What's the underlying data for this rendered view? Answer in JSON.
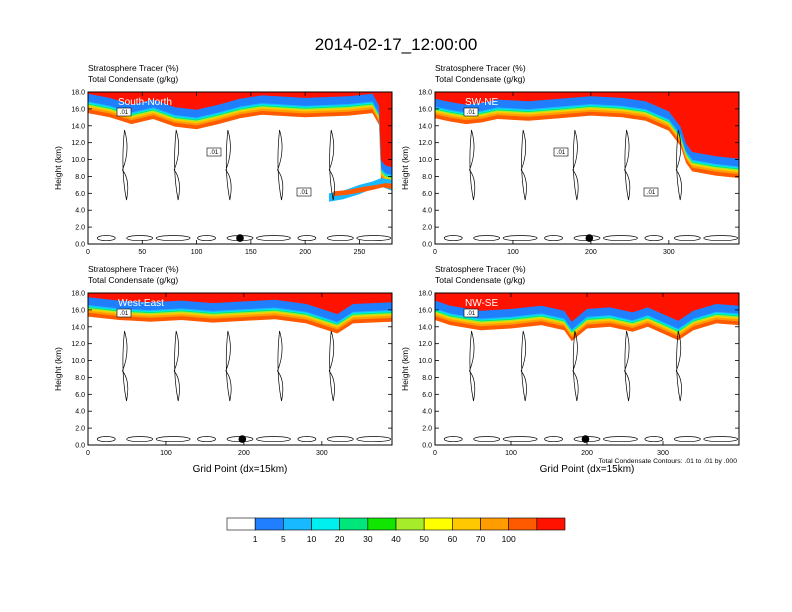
{
  "figure": {
    "title": "2014-02-17_12:00:00",
    "contour_note": "Total Condensate Contours: .01 to .01 by .000"
  },
  "colorbar": {
    "labels": [
      "1",
      "5",
      "10",
      "20",
      "30",
      "40",
      "50",
      "60",
      "70",
      "100"
    ],
    "colors": [
      "#ffffff",
      "#1f7fff",
      "#19b9ff",
      "#00f0f0",
      "#00e67a",
      "#11e600",
      "#a6ec2b",
      "#ffff00",
      "#ffc800",
      "#ff9c00",
      "#ff5a00",
      "#ff1200"
    ]
  },
  "chart_data": [
    {
      "type": "heatmap",
      "name": "South-North",
      "header_line1": "Stratosphere Tracer   (%)",
      "header_line2": "Total Condensate   (g/kg)",
      "ylabel": "Height (km)",
      "xlabel": "",
      "xlim": [
        0,
        280
      ],
      "ylim": [
        0,
        18
      ],
      "xticks": [
        "0",
        "50",
        "100",
        "150",
        "200",
        "250"
      ],
      "yticks": [
        "0.0",
        "2.0",
        "4.0",
        "6.0",
        "8.0",
        "10.0",
        "12.0",
        "14.0",
        "16.0",
        "18.0"
      ],
      "tropopause_km": [
        [
          0,
          15.9
        ],
        [
          20,
          15.4
        ],
        [
          40,
          14.6
        ],
        [
          60,
          15.2
        ],
        [
          80,
          14.3
        ],
        [
          100,
          14.0
        ],
        [
          120,
          14.6
        ],
        [
          140,
          15.3
        ],
        [
          160,
          15.7
        ],
        [
          200,
          15.4
        ],
        [
          240,
          15.6
        ],
        [
          262,
          15.9
        ],
        [
          268,
          14.5
        ],
        [
          270,
          8.0
        ],
        [
          274,
          7.4
        ],
        [
          280,
          7.2
        ]
      ],
      "intrusion_polygon_km": [
        [
          222,
          6.0
        ],
        [
          235,
          6.3
        ],
        [
          250,
          7.0
        ],
        [
          262,
          7.4
        ],
        [
          270,
          7.8
        ],
        [
          280,
          7.6
        ],
        [
          280,
          6.3
        ],
        [
          268,
          6.9
        ],
        [
          250,
          5.9
        ],
        [
          235,
          5.3
        ],
        [
          222,
          5.0
        ]
      ],
      "contour_labels": [
        ".01",
        ".01",
        ".01"
      ],
      "marker_x": 140
    },
    {
      "type": "heatmap",
      "name": "SW-NE",
      "header_line1": "Stratosphere Tracer   (%)",
      "header_line2": "Total Condensate   (g/kg)",
      "ylabel": "Height (km)",
      "xlabel": "",
      "xlim": [
        0,
        390
      ],
      "ylim": [
        0,
        18
      ],
      "xticks": [
        "0",
        "100",
        "200",
        "300"
      ],
      "yticks": [
        "0.0",
        "2.0",
        "4.0",
        "6.0",
        "8.0",
        "10.0",
        "12.0",
        "14.0",
        "16.0",
        "18.0"
      ],
      "tropopause_km": [
        [
          0,
          15.3
        ],
        [
          20,
          14.9
        ],
        [
          40,
          14.6
        ],
        [
          60,
          14.8
        ],
        [
          80,
          15.2
        ],
        [
          120,
          15.0
        ],
        [
          160,
          15.3
        ],
        [
          200,
          15.6
        ],
        [
          240,
          15.4
        ],
        [
          270,
          15.0
        ],
        [
          300,
          13.8
        ],
        [
          315,
          12.0
        ],
        [
          322,
          10.0
        ],
        [
          330,
          9.0
        ],
        [
          360,
          8.5
        ],
        [
          390,
          8.2
        ]
      ],
      "intrusion_polygon_km": [],
      "contour_labels": [
        ".01",
        ".01",
        ".01"
      ],
      "marker_x": 198
    },
    {
      "type": "heatmap",
      "name": "West-East",
      "header_line1": "Stratosphere Tracer   (%)",
      "header_line2": "Total Condensate   (g/kg)",
      "ylabel": "Height (km)",
      "xlabel": "Grid Point (dx=15km)",
      "xlim": [
        0,
        390
      ],
      "ylim": [
        0,
        18
      ],
      "xticks": [
        "0",
        "100",
        "200",
        "300"
      ],
      "yticks": [
        "0.0",
        "2.0",
        "4.0",
        "6.0",
        "8.0",
        "10.0",
        "12.0",
        "14.0",
        "16.0",
        "18.0"
      ],
      "tropopause_km": [
        [
          0,
          15.6
        ],
        [
          40,
          15.2
        ],
        [
          80,
          15.0
        ],
        [
          120,
          15.2
        ],
        [
          160,
          14.9
        ],
        [
          200,
          15.1
        ],
        [
          240,
          15.3
        ],
        [
          280,
          14.8
        ],
        [
          300,
          14.2
        ],
        [
          320,
          13.6
        ],
        [
          340,
          14.8
        ],
        [
          390,
          15.0
        ]
      ],
      "intrusion_polygon_km": [],
      "contour_labels": [
        ".01"
      ],
      "marker_x": 198
    },
    {
      "type": "heatmap",
      "name": "NW-SE",
      "header_line1": "Stratosphere Tracer   (%)",
      "header_line2": "Total Condensate   (g/kg)",
      "ylabel": "Height (km)",
      "xlabel": "Grid Point (dx=15km)",
      "xlim": [
        0,
        400
      ],
      "ylim": [
        0,
        18
      ],
      "xticks": [
        "0",
        "100",
        "200",
        "300"
      ],
      "yticks": [
        "0.0",
        "2.0",
        "4.0",
        "6.0",
        "8.0",
        "10.0",
        "12.0",
        "14.0",
        "16.0",
        "18.0"
      ],
      "tropopause_km": [
        [
          0,
          15.2
        ],
        [
          20,
          14.6
        ],
        [
          60,
          14.0
        ],
        [
          100,
          14.2
        ],
        [
          140,
          14.6
        ],
        [
          170,
          14.0
        ],
        [
          180,
          12.7
        ],
        [
          200,
          14.2
        ],
        [
          230,
          14.4
        ],
        [
          260,
          13.8
        ],
        [
          280,
          14.4
        ],
        [
          300,
          13.6
        ],
        [
          320,
          12.8
        ],
        [
          340,
          14.0
        ],
        [
          370,
          14.8
        ],
        [
          400,
          14.6
        ]
      ],
      "intrusion_polygon_km": [],
      "contour_labels": [
        ".01"
      ],
      "marker_x": 198
    }
  ]
}
